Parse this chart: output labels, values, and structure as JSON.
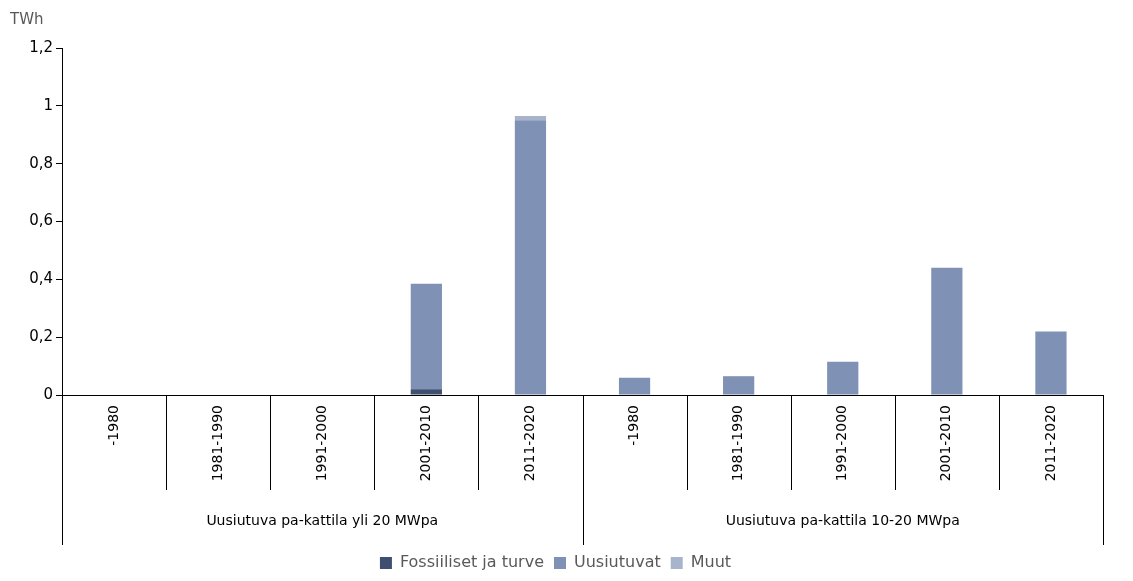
{
  "chart_data": {
    "type": "bar",
    "stacked": true,
    "ylabel": "TWh",
    "categories": [
      "-1980",
      "1981-1990",
      "1991-2000",
      "2001-2010",
      "2011-2020",
      "-1980",
      "1981-1990",
      "1991-2000",
      "2001-2010",
      "2011-2020"
    ],
    "annotations": [
      "Uusiutuva pa-kattila yli 20 MWpa",
      "Uusiutuva pa-kattila 10-20 MWpa"
    ],
    "series": [
      {
        "name": "Fossiiliset ja turve",
        "color": "#3f4f6f",
        "values": [
          0,
          0,
          0,
          0.02,
          0,
          0,
          0,
          0,
          0,
          0
        ]
      },
      {
        "name": "Uusiutuvat",
        "color": "#7f91b4",
        "values": [
          0,
          0,
          0,
          0.365,
          0.95,
          0.06,
          0.065,
          0.115,
          0.44,
          0.22
        ]
      },
      {
        "name": "Muut",
        "color": "#a8b4cc",
        "values": [
          0,
          0,
          0,
          0,
          0.015,
          0,
          0,
          0,
          0,
          0
        ]
      }
    ],
    "ylim": [
      0,
      1.2
    ],
    "yticks": [
      0,
      {
        "value": 0.2,
        "label": "0,2"
      },
      {
        "value": 0.4,
        "label": "0,4"
      },
      {
        "value": 0.6,
        "label": "0,6"
      },
      {
        "value": 0.8,
        "label": "0,8"
      },
      1,
      {
        "value": 1.2,
        "label": "1,2"
      }
    ],
    "grid": false,
    "legend": "bottom"
  }
}
